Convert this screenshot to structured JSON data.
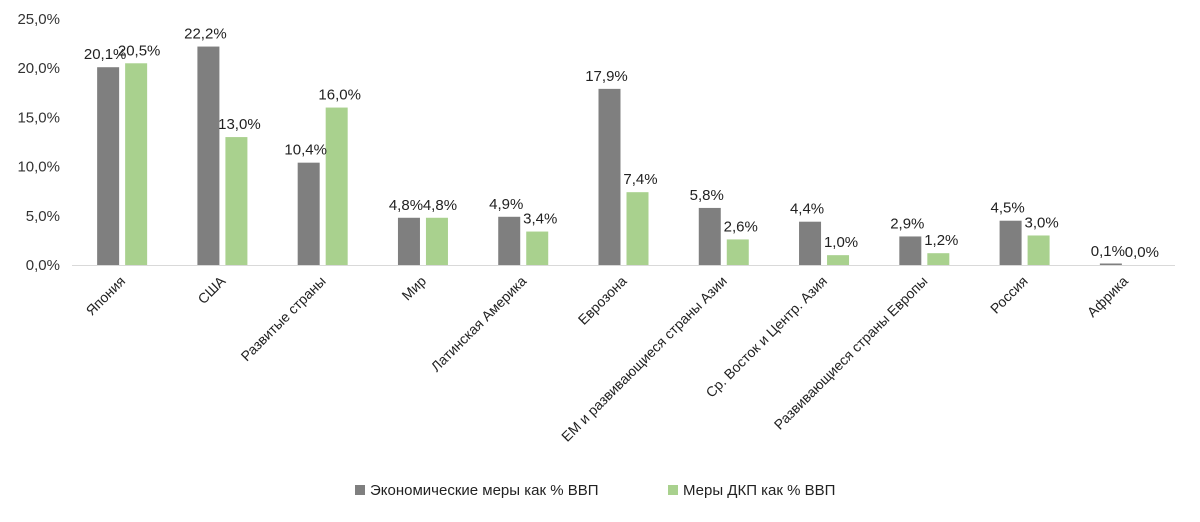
{
  "chart_data": {
    "type": "bar",
    "categories": [
      "Япония",
      "США",
      "Развитые страны",
      "Мир",
      "Латинская Америка",
      "Еврозона",
      "ЕМ и развивающиеся страны Азии",
      "Ср. Восток и Центр. Азия",
      "Развивающиеся страны Европы",
      "Россия",
      "Африка"
    ],
    "series": [
      {
        "name": "Экономические меры как % ВВП",
        "color": "#7f7f7f",
        "values": [
          20.1,
          22.2,
          10.4,
          4.8,
          4.9,
          17.9,
          5.8,
          4.4,
          2.9,
          4.5,
          0.1
        ],
        "labels": [
          "20,1%",
          "22,2%",
          "10,4%",
          "4,8%",
          "4,9%",
          "17,9%",
          "5,8%",
          "4,4%",
          "2,9%",
          "4,5%",
          "0,1%"
        ]
      },
      {
        "name": "Меры ДКП как % ВВП",
        "color": "#a9d18e",
        "values": [
          20.5,
          13.0,
          16.0,
          4.8,
          3.4,
          7.4,
          2.6,
          1.0,
          1.2,
          3.0,
          0.0
        ],
        "labels": [
          "20,5%",
          "13,0%",
          "16,0%",
          "4,8%",
          "3,4%",
          "7,4%",
          "2,6%",
          "1,0%",
          "1,2%",
          "3,0%",
          "0,0%"
        ]
      }
    ],
    "ylim": [
      0,
      25
    ],
    "yticks": [
      0,
      5,
      10,
      15,
      20,
      25
    ],
    "ytick_labels": [
      "0,0%",
      "5,0%",
      "10,0%",
      "15,0%",
      "20,0%",
      "25,0%"
    ],
    "title": "",
    "xlabel": "",
    "ylabel": "",
    "grid": false,
    "legend": "bottom-center"
  }
}
